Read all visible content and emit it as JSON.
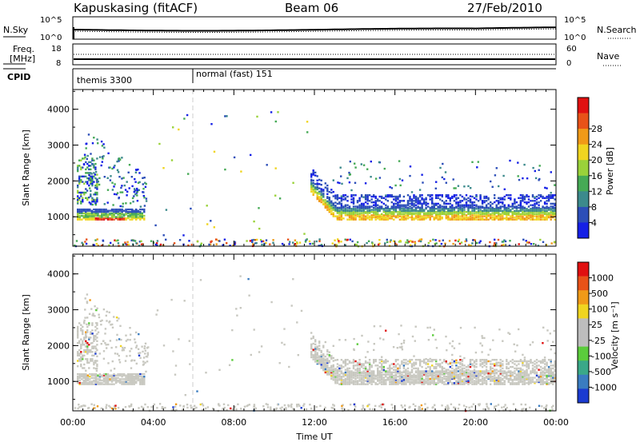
{
  "header": {
    "station": "Kapuskasing (fitACF)",
    "beam": "Beam 06",
    "date": "27/Feb/2010"
  },
  "strip_noise": {
    "left_label": "N.Sky",
    "right_label": "N.Search",
    "left_ticks": [
      "10^5",
      "10^0"
    ],
    "right_ticks": [
      "10^5",
      "10^0"
    ]
  },
  "strip_freq": {
    "left_label_1": "Freq.",
    "left_label_2": "[MHz]",
    "right_label": "Nave",
    "left_ticks": [
      "18",
      "8"
    ],
    "right_ticks": [
      "60",
      "0"
    ]
  },
  "strip_cpid": {
    "label": "CPID",
    "segments": [
      {
        "text": "themis 3300",
        "start_hour": 0
      },
      {
        "text": "normal (fast) 151",
        "start_hour": 6
      }
    ]
  },
  "chart_data": [
    {
      "type": "heatmap",
      "name": "power-panel",
      "ylabel": "Slant Range [km]",
      "ylim": [
        180,
        4550
      ],
      "yticks": [
        "1000",
        "2000",
        "3000",
        "4000"
      ],
      "xlim_hours": [
        0,
        24
      ],
      "colorbar": {
        "label": "Power [dB]",
        "ticks": [
          "4",
          "8",
          "12",
          "16",
          "20",
          "24",
          "28"
        ],
        "colors": [
          "#1520e6",
          "#2c4eb8",
          "#3c8a8c",
          "#46aa55",
          "#9ad23a",
          "#f0d520",
          "#f09a18",
          "#e85218",
          "#e01010"
        ]
      }
    },
    {
      "type": "heatmap",
      "name": "velocity-panel",
      "ylabel": "Slant Range [km]",
      "ylim": [
        180,
        4550
      ],
      "yticks": [
        "1000",
        "2000",
        "3000",
        "4000"
      ],
      "xlim_hours": [
        0,
        24
      ],
      "xticks": [
        "00:00",
        "04:00",
        "08:00",
        "12:00",
        "16:00",
        "20:00",
        "00:00"
      ],
      "xlabel": "Time UT",
      "colorbar": {
        "label": "Velocity [m s⁻¹]",
        "ticks": [
          "1000",
          "500",
          "100",
          "25",
          "-25",
          "-100",
          "-500",
          "-1000"
        ],
        "colors": [
          "#1b3bd0",
          "#3a7cc0",
          "#3aa888",
          "#5bcc3c",
          "#bdbdbd",
          "#bdbdbd",
          "#f0d520",
          "#f09a18",
          "#e85218",
          "#e01010"
        ]
      }
    }
  ]
}
